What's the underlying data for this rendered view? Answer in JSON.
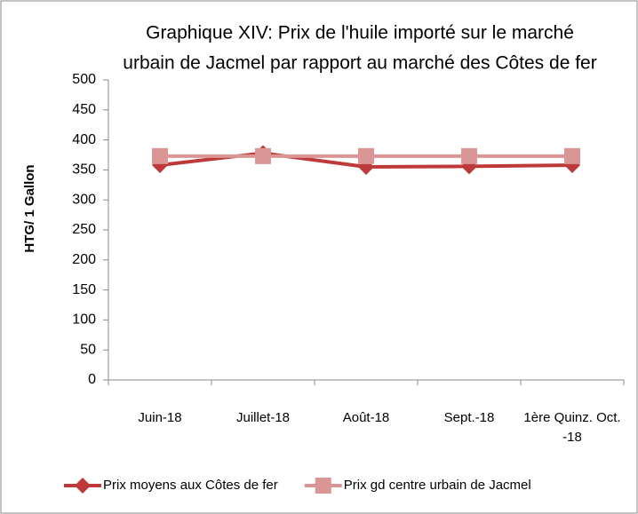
{
  "chart_data": {
    "type": "line",
    "title": [
      "Graphique XIV: Prix de l'huile importé sur le marché",
      "urbain de Jacmel par rapport au marché des Côtes de fer"
    ],
    "y_label": "HTG/ 1 Gallon",
    "categories": [
      "Juin-18",
      "Juillet-18",
      "Août-18",
      "Sept.-18",
      "1ère Quinz. Oct. -18"
    ],
    "series": [
      {
        "name": "Prix moyens aux Côtes de fer",
        "color": "#be3a3a",
        "marker": "diamond",
        "values": [
          358,
          378,
          355,
          356,
          358
        ]
      },
      {
        "name": "Prix gd centre urbain de Jacmel",
        "color": "#d99694",
        "marker": "square",
        "values": [
          373,
          373,
          373,
          373,
          373
        ]
      }
    ],
    "ylim": [
      0,
      500
    ],
    "yticks": [
      0,
      50,
      100,
      150,
      200,
      250,
      300,
      350,
      400,
      450,
      500
    ],
    "legend": "bottom"
  }
}
